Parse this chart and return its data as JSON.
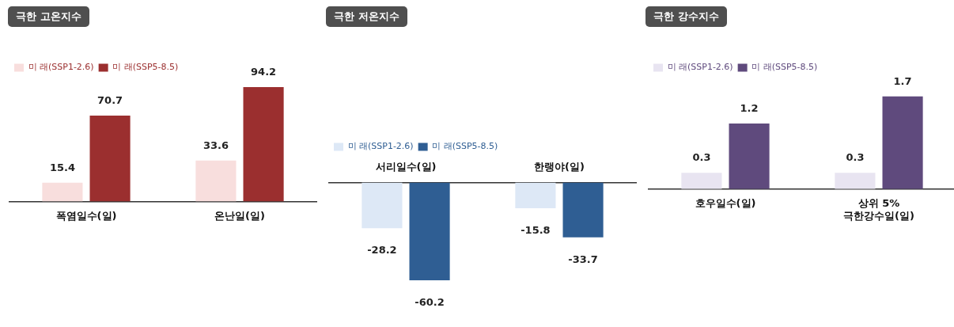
{
  "chart_data": [
    {
      "type": "bar",
      "title": "극한 고온지수",
      "categories": [
        "폭염일수(일)",
        "온난일(일)"
      ],
      "series": [
        {
          "name": "미 래(SSP1-2.6)",
          "color": "#f8dedd",
          "values": [
            15.4,
            33.6
          ]
        },
        {
          "name": "미 래(SSP5-8.5)",
          "color": "#9b2f2f",
          "values": [
            70.7,
            94.2
          ]
        }
      ],
      "data_labels": true,
      "legend": "top left"
    },
    {
      "type": "bar",
      "title": "극한 저온지수",
      "categories": [
        "서리일수(일)",
        "한랭야(일)"
      ],
      "series": [
        {
          "name": "미 래(SSP1-2.6)",
          "color": "#dde8f6",
          "values": [
            -28.2,
            -15.8
          ]
        },
        {
          "name": "미 래(SSP5-8.5)",
          "color": "#2f5e93",
          "values": [
            -60.2,
            -33.7
          ]
        }
      ],
      "data_labels": true,
      "legend": "top left"
    },
    {
      "type": "bar",
      "title": "극한 강수지수",
      "categories": [
        "호우일수(일)",
        "상위 5% 극한강수일(일)"
      ],
      "series": [
        {
          "name": "미 래(SSP1-2.6)",
          "color": "#e8e4f1",
          "values": [
            0.3,
            0.3
          ]
        },
        {
          "name": "미 래(SSP5-8.5)",
          "color": "#5f4a7d",
          "values": [
            1.2,
            1.7
          ]
        }
      ],
      "data_labels": true,
      "legend": "top left"
    }
  ]
}
